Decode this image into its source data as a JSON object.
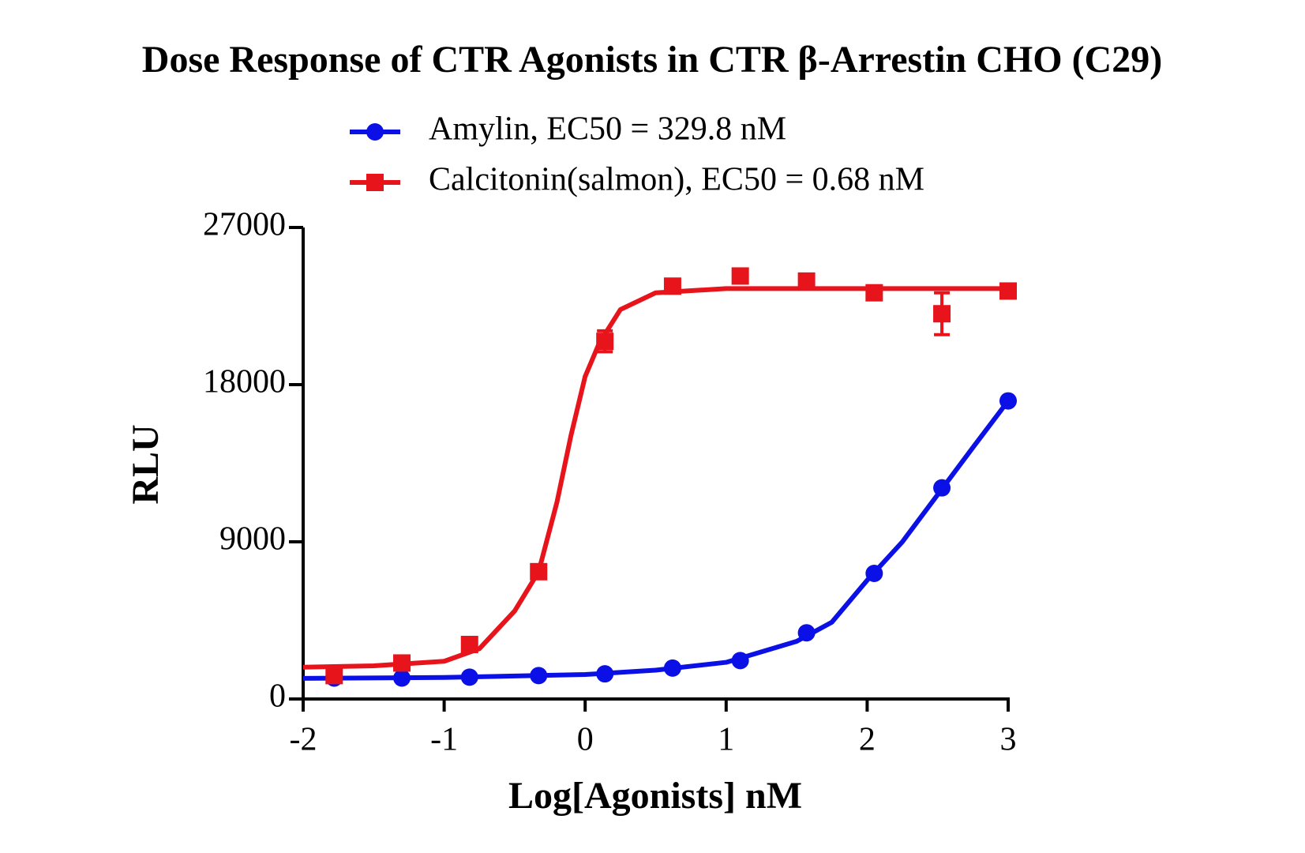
{
  "chart_data": {
    "type": "scatter",
    "title": "Dose Response of CTR Agonists in CTR β-Arrestin CHO (C29)",
    "x_label": "Log[Agonists] nM",
    "y_label": "RLU",
    "xlim": [
      -2,
      3
    ],
    "xticks": [
      -2,
      -1,
      0,
      1,
      2,
      3
    ],
    "ylim": [
      0,
      27000
    ],
    "yticks": [
      0,
      9000,
      18000,
      27000
    ],
    "series": [
      {
        "name": "Amylin, EC50 = 329.8 nM",
        "color": "#0a10e6",
        "marker": "circle",
        "x": [
          -1.78,
          -1.3,
          -0.82,
          -0.33,
          0.14,
          0.62,
          1.1,
          1.57,
          2.05,
          2.53,
          3.0
        ],
        "values": [
          1200,
          1200,
          1250,
          1340,
          1440,
          1770,
          2200,
          3790,
          7190,
          12090,
          17070
        ],
        "fit": {
          "x": [
            -2,
            -1,
            0,
            0.5,
            1,
            1.5,
            1.75,
            2,
            2.25,
            2.5,
            2.75,
            3
          ],
          "values": [
            1180,
            1230,
            1400,
            1650,
            2100,
            3300,
            4400,
            6800,
            9000,
            11700,
            14400,
            17070
          ]
        }
      },
      {
        "name": "Calcitonin(salmon), EC50 = 0.68 nM",
        "color": "#e8141b",
        "marker": "square",
        "x": [
          -1.78,
          -1.3,
          -0.82,
          -0.33,
          0.14,
          0.62,
          1.1,
          1.57,
          2.05,
          2.53,
          3.0
        ],
        "values": [
          1340,
          2060,
          3120,
          7290,
          20480,
          23640,
          24220,
          23930,
          23260,
          22060,
          23360
        ],
        "errors": [
          200,
          200,
          200,
          200,
          600,
          200,
          200,
          200,
          200,
          1200,
          200
        ],
        "fit": {
          "x": [
            -2,
            -1.5,
            -1,
            -0.75,
            -0.5,
            -0.33,
            -0.2,
            -0.1,
            0,
            0.1,
            0.25,
            0.5,
            1,
            2,
            3
          ],
          "values": [
            1820,
            1900,
            2160,
            2880,
            5040,
            7290,
            11270,
            15110,
            18470,
            20380,
            22300,
            23260,
            23500,
            23500,
            23500
          ]
        }
      }
    ]
  }
}
